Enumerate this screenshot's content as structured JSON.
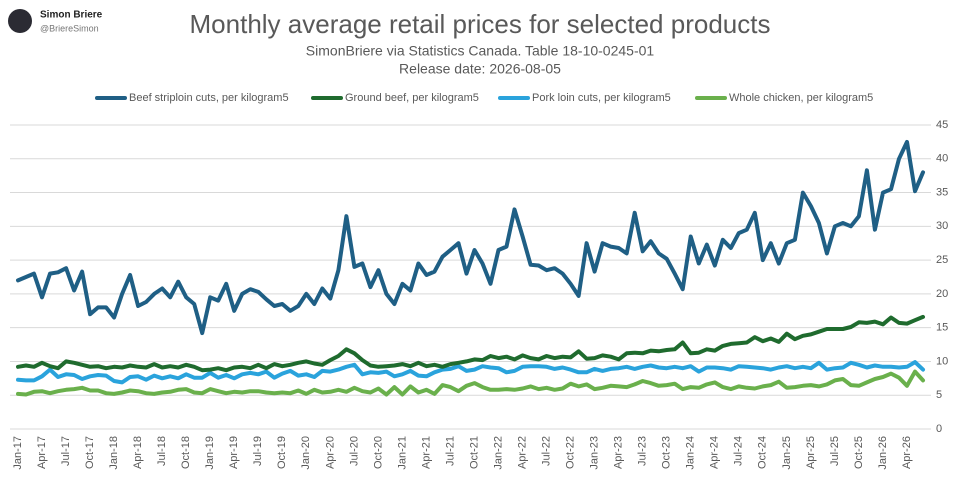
{
  "header": {
    "name": "Simon Briere",
    "handle": "@BriereSimon"
  },
  "chart_data": {
    "type": "line",
    "title": "Monthly average retail prices for selected products",
    "subtitle": "SimonBriere via Statistics Canada. Table 18-10-0245-01",
    "note": "Release date: 2026-08-05",
    "categories": [
      "Jan-17",
      null,
      null,
      "Apr-17",
      null,
      null,
      "Jul-17",
      null,
      null,
      "Oct-17",
      null,
      null,
      "Jan-18",
      null,
      null,
      "Apr-18",
      null,
      null,
      "Jul-18",
      null,
      null,
      "Oct-18",
      null,
      null,
      "Jan-19",
      null,
      null,
      "Apr-19",
      null,
      null,
      "Jul-19",
      null,
      null,
      "Oct-19",
      null,
      null,
      "Jan-20",
      null,
      null,
      "Apr-20",
      null,
      null,
      "Jul-20",
      null,
      null,
      "Oct-20",
      null,
      null,
      "Jan-21",
      null,
      null,
      "Apr-21",
      null,
      null,
      "Jul-21",
      null,
      null,
      "Oct-21",
      null,
      null,
      "Jan-22",
      null,
      null,
      "Apr-22",
      null,
      null,
      "Jul-22",
      null,
      null,
      "Oct-22",
      null,
      null,
      "Jan-23",
      null,
      null,
      "Apr-23",
      null,
      null,
      "Jul-23",
      null,
      null,
      "Oct-23",
      null,
      null,
      "Jan-24",
      null,
      null,
      "Apr-24",
      null,
      null,
      "Jul-24",
      null,
      null,
      "Oct-24",
      null,
      null,
      "Jan-25",
      null,
      null,
      "Apr-25",
      null,
      null,
      "Jul-25",
      null,
      null,
      "Oct-25",
      null,
      null,
      "Jan-26",
      null,
      null,
      "Apr-26",
      null,
      null
    ],
    "series": [
      {
        "name": "Beef striploin cuts, per kilogram5",
        "color": "#1f5f85",
        "values": [
          22,
          22.5,
          23,
          19.5,
          23,
          23.2,
          23.8,
          20.5,
          23.3,
          17,
          18,
          18,
          16.5,
          20,
          22.8,
          18.2,
          18.8,
          20,
          20.8,
          19.5,
          21.8,
          19.5,
          18.5,
          14.2,
          19.5,
          19,
          21.5,
          17.5,
          20,
          20.7,
          20.3,
          19.2,
          18.2,
          18.5,
          17.5,
          18.2,
          20,
          18.5,
          20.8,
          19.3,
          23.5,
          31.5,
          24,
          24.5,
          21,
          23.5,
          20,
          18.5,
          21.5,
          20.5,
          24.5,
          22.8,
          23.3,
          25.5,
          26.5,
          27.5,
          23,
          26.5,
          24.5,
          21.5,
          26.5,
          27,
          32.5,
          28.5,
          24.3,
          24.2,
          23.5,
          23.8,
          23,
          21.5,
          19.7,
          27.5,
          23.3,
          27.5,
          27,
          26.8,
          26,
          32,
          26.3,
          27.8,
          26,
          25.2,
          23,
          20.7,
          28.5,
          24.5,
          27.3,
          24.2,
          28,
          26.8,
          29,
          29.5,
          32,
          25,
          27.5,
          24.5,
          27.5,
          28,
          35,
          33,
          30.5,
          26,
          30,
          30.5,
          30,
          31.5,
          38.3,
          29.5,
          35,
          35.5,
          40,
          42.5,
          35.2,
          38
        ]
      },
      {
        "name": "Ground beef, per kilogram5",
        "color": "#1f6b2e",
        "values": [
          9.2,
          9.4,
          9.2,
          9.8,
          9.3,
          9,
          10,
          9.8,
          9.5,
          9.2,
          9.3,
          9,
          9.2,
          9.1,
          9.4,
          9.2,
          9.1,
          9.6,
          9.1,
          9.3,
          9.1,
          9.5,
          9.2,
          8.7,
          8.8,
          9,
          8.7,
          9.1,
          9.2,
          9,
          9.5,
          9,
          9.6,
          9.3,
          9.5,
          9.8,
          10,
          9.7,
          9.5,
          10.2,
          10.8,
          11.8,
          11.2,
          10.2,
          9.4,
          9.2,
          9.3,
          9.4,
          9.6,
          9.3,
          9.8,
          9.3,
          9.5,
          9.2,
          9.6,
          9.8,
          10,
          10.3,
          10.2,
          10.8,
          10.5,
          10.7,
          10.3,
          10.9,
          10.5,
          10.3,
          10.8,
          10.5,
          10.7,
          10.6,
          11.5,
          10.4,
          10.5,
          10.9,
          10.7,
          10.3,
          11.2,
          11.3,
          11.2,
          11.6,
          11.5,
          11.7,
          11.8,
          12.8,
          11.2,
          11.3,
          11.8,
          11.6,
          12.3,
          12.6,
          12.7,
          12.8,
          13.6,
          13,
          13.4,
          12.9,
          14.1,
          13.3,
          13.8,
          14,
          14.4,
          14.8,
          14.8,
          14.8,
          15.1,
          15.8,
          15.7,
          15.9,
          15.5,
          16.5,
          15.7,
          15.6,
          16.1,
          16.6
        ]
      },
      {
        "name": "Pork loin cuts, per kilogram5",
        "color": "#2aa3dc",
        "values": [
          7.3,
          7.2,
          7.2,
          7.8,
          8.8,
          7.7,
          8.1,
          8,
          7.4,
          7.8,
          8,
          7.9,
          7.1,
          6.9,
          7.7,
          7.8,
          7.3,
          7.9,
          7.5,
          7.8,
          7.5,
          8.1,
          7.6,
          7.6,
          8.3,
          7.6,
          8,
          7.5,
          8.1,
          8.3,
          8.1,
          8.5,
          7.6,
          8.2,
          8.6,
          7.9,
          8.1,
          7.7,
          8.6,
          8.5,
          8.8,
          9.2,
          9.5,
          8.1,
          8.4,
          8.3,
          8.5,
          7.8,
          8.1,
          8.6,
          7.9,
          7.8,
          8.4,
          8.8,
          8.9,
          9.3,
          8.6,
          8.8,
          9.3,
          9.1,
          9,
          8.4,
          8.6,
          9.2,
          9.3,
          9.3,
          9.2,
          8.9,
          9.1,
          8.8,
          8.4,
          8.4,
          8.9,
          8.6,
          8.9,
          9,
          9.2,
          8.9,
          9.2,
          9.4,
          9.1,
          9,
          9.2,
          9,
          9.3,
          8.5,
          9.1,
          9.1,
          9,
          8.8,
          9.3,
          9.2,
          9.1,
          9,
          8.8,
          9.1,
          9.3,
          9,
          9.2,
          9,
          9.8,
          8.8,
          9,
          9.1,
          9.8,
          9.5,
          9.1,
          9.4,
          9.2,
          9.2,
          9.1,
          9.2,
          9.9,
          8.8
        ]
      },
      {
        "name": "Whole chicken, per kilogram5",
        "color": "#6ab04c",
        "values": [
          5.2,
          5.1,
          5.5,
          5.6,
          5.3,
          5.6,
          5.8,
          5.9,
          6.1,
          5.7,
          5.7,
          5.3,
          5.2,
          5.4,
          5.7,
          5.6,
          5.3,
          5.2,
          5.4,
          5.5,
          5.8,
          5.9,
          5.4,
          5.3,
          5.9,
          5.6,
          5.3,
          5.5,
          5.4,
          5.6,
          5.6,
          5.4,
          5.3,
          5.4,
          5.3,
          5.7,
          5.2,
          5.8,
          5.4,
          5.5,
          5.8,
          5.5,
          6.1,
          5.6,
          5.4,
          6,
          5.1,
          6.2,
          5.1,
          6.3,
          5.4,
          5.8,
          5.2,
          6.5,
          6.2,
          5.6,
          6.4,
          6.8,
          6.2,
          5.8,
          5.8,
          5.9,
          5.8,
          6,
          6.3,
          5.9,
          6.1,
          5.8,
          6,
          6.7,
          6.3,
          6.6,
          5.9,
          6.1,
          6.4,
          6.3,
          6.2,
          6.6,
          7.1,
          6.8,
          6.4,
          6.5,
          6.7,
          5.9,
          6.2,
          6.1,
          6.6,
          6.9,
          6.2,
          5.9,
          6.3,
          6.1,
          6,
          6.3,
          6.5,
          7,
          6.1,
          6.2,
          6.4,
          6.5,
          6.3,
          6.6,
          7.2,
          7.4,
          6.5,
          6.4,
          6.9,
          7.4,
          7.7,
          8.2,
          7.6,
          6.4,
          8.5,
          7.2
        ]
      }
    ],
    "ylim": [
      0,
      45
    ],
    "yticks": [
      0,
      5,
      10,
      15,
      20,
      25,
      30,
      35,
      40,
      45
    ],
    "grid": true,
    "legend": "top"
  }
}
